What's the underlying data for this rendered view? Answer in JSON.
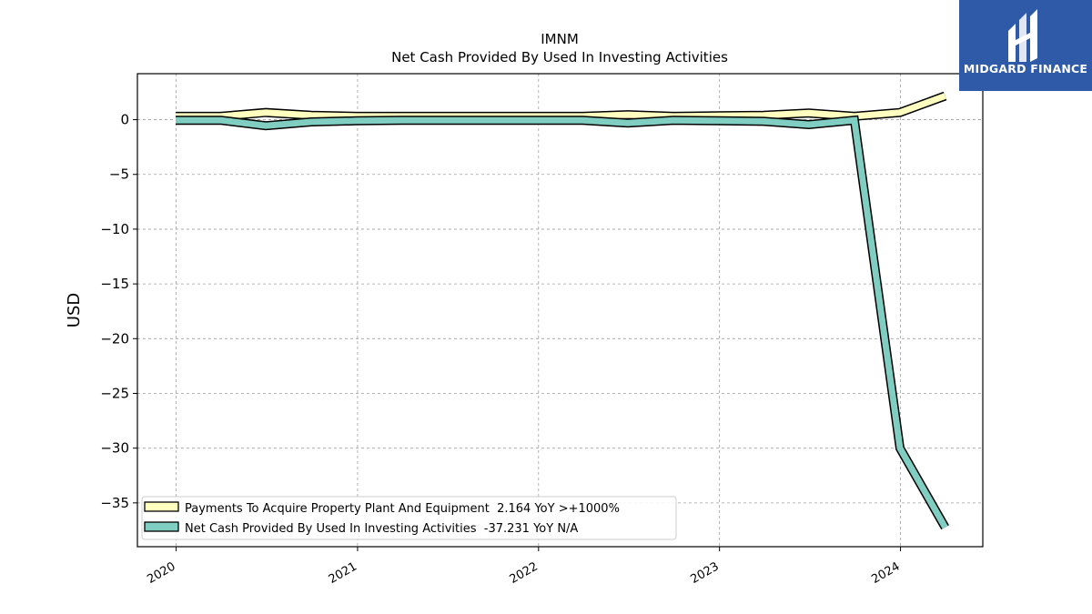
{
  "brand": {
    "name": "MIDGARD FINANCE",
    "background_color": "#2f5aa8",
    "icon": "midgard-logo-icon"
  },
  "chart_data": {
    "type": "line",
    "title": "IMNM",
    "subtitle": "Net Cash Provided By Used In Investing Activities",
    "ylabel": "USD",
    "xlabel": "",
    "ylim": [
      -39,
      4.2
    ],
    "xlim": [
      "2019-10-15",
      "2024-06-15"
    ],
    "yticks": [
      0,
      -5,
      -10,
      -15,
      -20,
      -25,
      -30,
      -35
    ],
    "ytick_labels": [
      "0",
      "−5",
      "−10",
      "−15",
      "−20",
      "−25",
      "−30",
      "−35"
    ],
    "xticks": [
      "2020-01-01",
      "2021-01-01",
      "2022-01-01",
      "2023-01-01",
      "2024-01-01"
    ],
    "xtick_labels": [
      "2020",
      "2021",
      "2022",
      "2023",
      "2024"
    ],
    "grid": true,
    "legend_position": "lower-left",
    "x": [
      "2019-12-31",
      "2020-03-31",
      "2020-06-30",
      "2020-09-30",
      "2020-12-31",
      "2021-03-31",
      "2021-06-30",
      "2021-09-30",
      "2021-12-31",
      "2022-03-31",
      "2022-06-30",
      "2022-09-30",
      "2022-12-31",
      "2023-03-31",
      "2023-06-30",
      "2023-09-30",
      "2023-12-31",
      "2024-03-31"
    ],
    "series": [
      {
        "name": "Payments To Acquire Property Plant And Equipment",
        "legend_label": "Payments To Acquire Property Plant And Equipment  2.164 YoY >+1000%",
        "color": "#ffffbf",
        "values": [
          0.3,
          0.3,
          0.65,
          0.4,
          0.3,
          0.3,
          0.3,
          0.3,
          0.3,
          0.3,
          0.45,
          0.3,
          0.35,
          0.4,
          0.6,
          0.3,
          0.65,
          2.164
        ]
      },
      {
        "name": "Net Cash Provided By Used In Investing Activities",
        "legend_label": "Net Cash Provided By Used In Investing Activities  -37.231 YoY N/A",
        "color": "#80cdc1",
        "values": [
          -0.05,
          -0.05,
          -0.55,
          -0.2,
          -0.1,
          -0.05,
          -0.05,
          -0.05,
          -0.05,
          -0.05,
          -0.3,
          -0.05,
          -0.1,
          -0.15,
          -0.45,
          -0.05,
          -30.0,
          -37.231
        ]
      }
    ]
  }
}
